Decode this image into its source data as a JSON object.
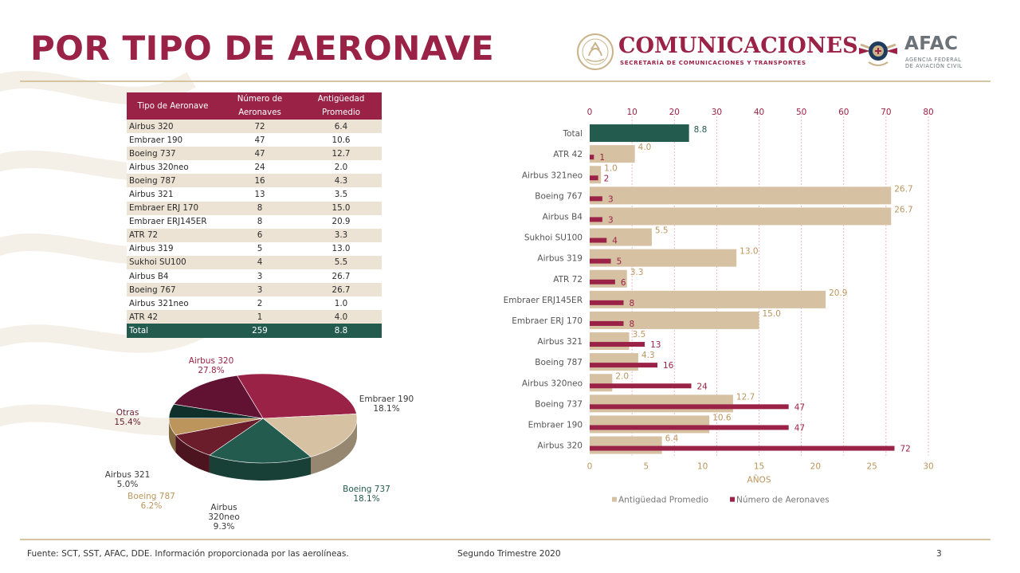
{
  "header": {
    "title": "POR TIPO DE AERONAVE",
    "sct_name": "COMUNICACIONES",
    "sct_sub": "SECRETARÍA DE COMUNICACIONES Y TRANSPORTES",
    "afac_name": "AFAC",
    "afac_sub_line1": "AGENCIA FEDERAL",
    "afac_sub_line2": "DE AVIACIÓN CIVIL"
  },
  "colors": {
    "guinda": "#9b2247",
    "green": "#235b4e",
    "beige": "#d6c1a2",
    "gold": "#bc955c",
    "dark": "#6b1d2c"
  },
  "table": {
    "headers": [
      "Tipo de Aeronave",
      "Número de Aeronaves",
      "Antigüedad Promedio"
    ],
    "rows": [
      {
        "name": "Airbus 320",
        "count": "72",
        "age": "6.4"
      },
      {
        "name": "Embraer 190",
        "count": "47",
        "age": "10.6"
      },
      {
        "name": "Boeing 737",
        "count": "47",
        "age": "12.7"
      },
      {
        "name": "Airbus 320neo",
        "count": "24",
        "age": "2.0"
      },
      {
        "name": "Boeing 787",
        "count": "16",
        "age": "4.3"
      },
      {
        "name": "Airbus 321",
        "count": "13",
        "age": "3.5"
      },
      {
        "name": "Embraer ERJ 170",
        "count": "8",
        "age": "15.0"
      },
      {
        "name": "Embraer ERJ145ER",
        "count": "8",
        "age": "20.9"
      },
      {
        "name": "ATR 72",
        "count": "6",
        "age": "3.3"
      },
      {
        "name": "Airbus 319",
        "count": "5",
        "age": "13.0"
      },
      {
        "name": "Sukhoi SU100",
        "count": "4",
        "age": "5.5"
      },
      {
        "name": "Airbus B4",
        "count": "3",
        "age": "26.7"
      },
      {
        "name": "Boeing 767",
        "count": "3",
        "age": "26.7"
      },
      {
        "name": "Airbus 321neo",
        "count": "2",
        "age": "1.0"
      },
      {
        "name": "ATR 42",
        "count": "1",
        "age": "4.0"
      }
    ],
    "total": {
      "name": "Total",
      "count": "259",
      "age": "8.8"
    }
  },
  "chart_data": [
    {
      "type": "pie",
      "slices": [
        {
          "label": "Airbus 320",
          "value": 27.8,
          "pct_text": "27.8%",
          "color": "#9b2247"
        },
        {
          "label": "Embraer 190",
          "value": 18.1,
          "pct_text": "18.1%",
          "color": "#d6c1a2"
        },
        {
          "label": "Boeing 737",
          "value": 18.1,
          "pct_text": "18.1%",
          "color": "#235b4e"
        },
        {
          "label": "Airbus\n320neo",
          "value": 9.3,
          "pct_text": "9.3%",
          "color": "#6b1d2c"
        },
        {
          "label": "Boeing 787",
          "value": 6.2,
          "pct_text": "6.2%",
          "color": "#bc955c"
        },
        {
          "label": "Airbus 321",
          "value": 5.0,
          "pct_text": "5.0%",
          "color": "#10312b"
        },
        {
          "label": "Otras",
          "value": 15.4,
          "pct_text": "15.4%",
          "color": "#611232"
        }
      ]
    },
    {
      "type": "bar",
      "orientation": "horizontal",
      "categories": [
        "Total",
        "ATR 42",
        "Airbus 321neo",
        "Boeing 767",
        "Airbus B4",
        "Sukhoi SU100",
        "Airbus 319",
        "ATR 72",
        "Embraer ERJ145ER",
        "Embraer ERJ 170",
        "Airbus 321",
        "Boeing 787",
        "Airbus 320neo",
        "Boeing 737",
        "Embraer 190",
        "Airbus 320"
      ],
      "series": [
        {
          "name": "Antigüedad Promedio",
          "axis": "bottom",
          "color": "#d6c1a2",
          "values": [
            null,
            4.0,
            1.0,
            26.7,
            26.7,
            5.5,
            13.0,
            3.3,
            20.9,
            15.0,
            3.5,
            4.3,
            2.0,
            12.7,
            10.6,
            6.4
          ]
        },
        {
          "name": "Número de Aeronaves",
          "axis": "top",
          "color": "#9b2247",
          "values": [
            null,
            1,
            2,
            3,
            3,
            4,
            5,
            6,
            8,
            8,
            13,
            16,
            24,
            47,
            47,
            72
          ]
        }
      ],
      "total_bar": {
        "value": 8.8,
        "axis": "bottom",
        "color": "#235b4e"
      },
      "age_labels": [
        "8.8",
        "4.0",
        "1.0",
        "26.7",
        "26.7",
        "5.5",
        "13.0",
        "3.3",
        "20.9",
        "15.0",
        "3.5",
        "4.3",
        "2.0",
        "12.7",
        "10.6",
        "6.4"
      ],
      "count_labels": [
        "",
        "1",
        "2",
        "3",
        "3",
        "4",
        "5",
        "6",
        "8",
        "8",
        "13",
        "16",
        "24",
        "47",
        "47",
        "72"
      ],
      "top_axis": {
        "ticks": [
          0,
          10,
          20,
          30,
          40,
          50,
          60,
          70,
          80
        ],
        "range": [
          0,
          80
        ]
      },
      "bottom_axis": {
        "ticks": [
          0,
          5,
          10,
          15,
          20,
          25,
          30
        ],
        "range": [
          0,
          30
        ],
        "label": "AÑOS"
      },
      "grid": "vertical dashed",
      "legend_position": "bottom"
    }
  ],
  "footer": {
    "source": "Fuente: SCT, SST, AFAC, DDE. Información proporcionada por las aerolíneas.",
    "period": "Segundo Trimestre 2020",
    "page": "3"
  }
}
